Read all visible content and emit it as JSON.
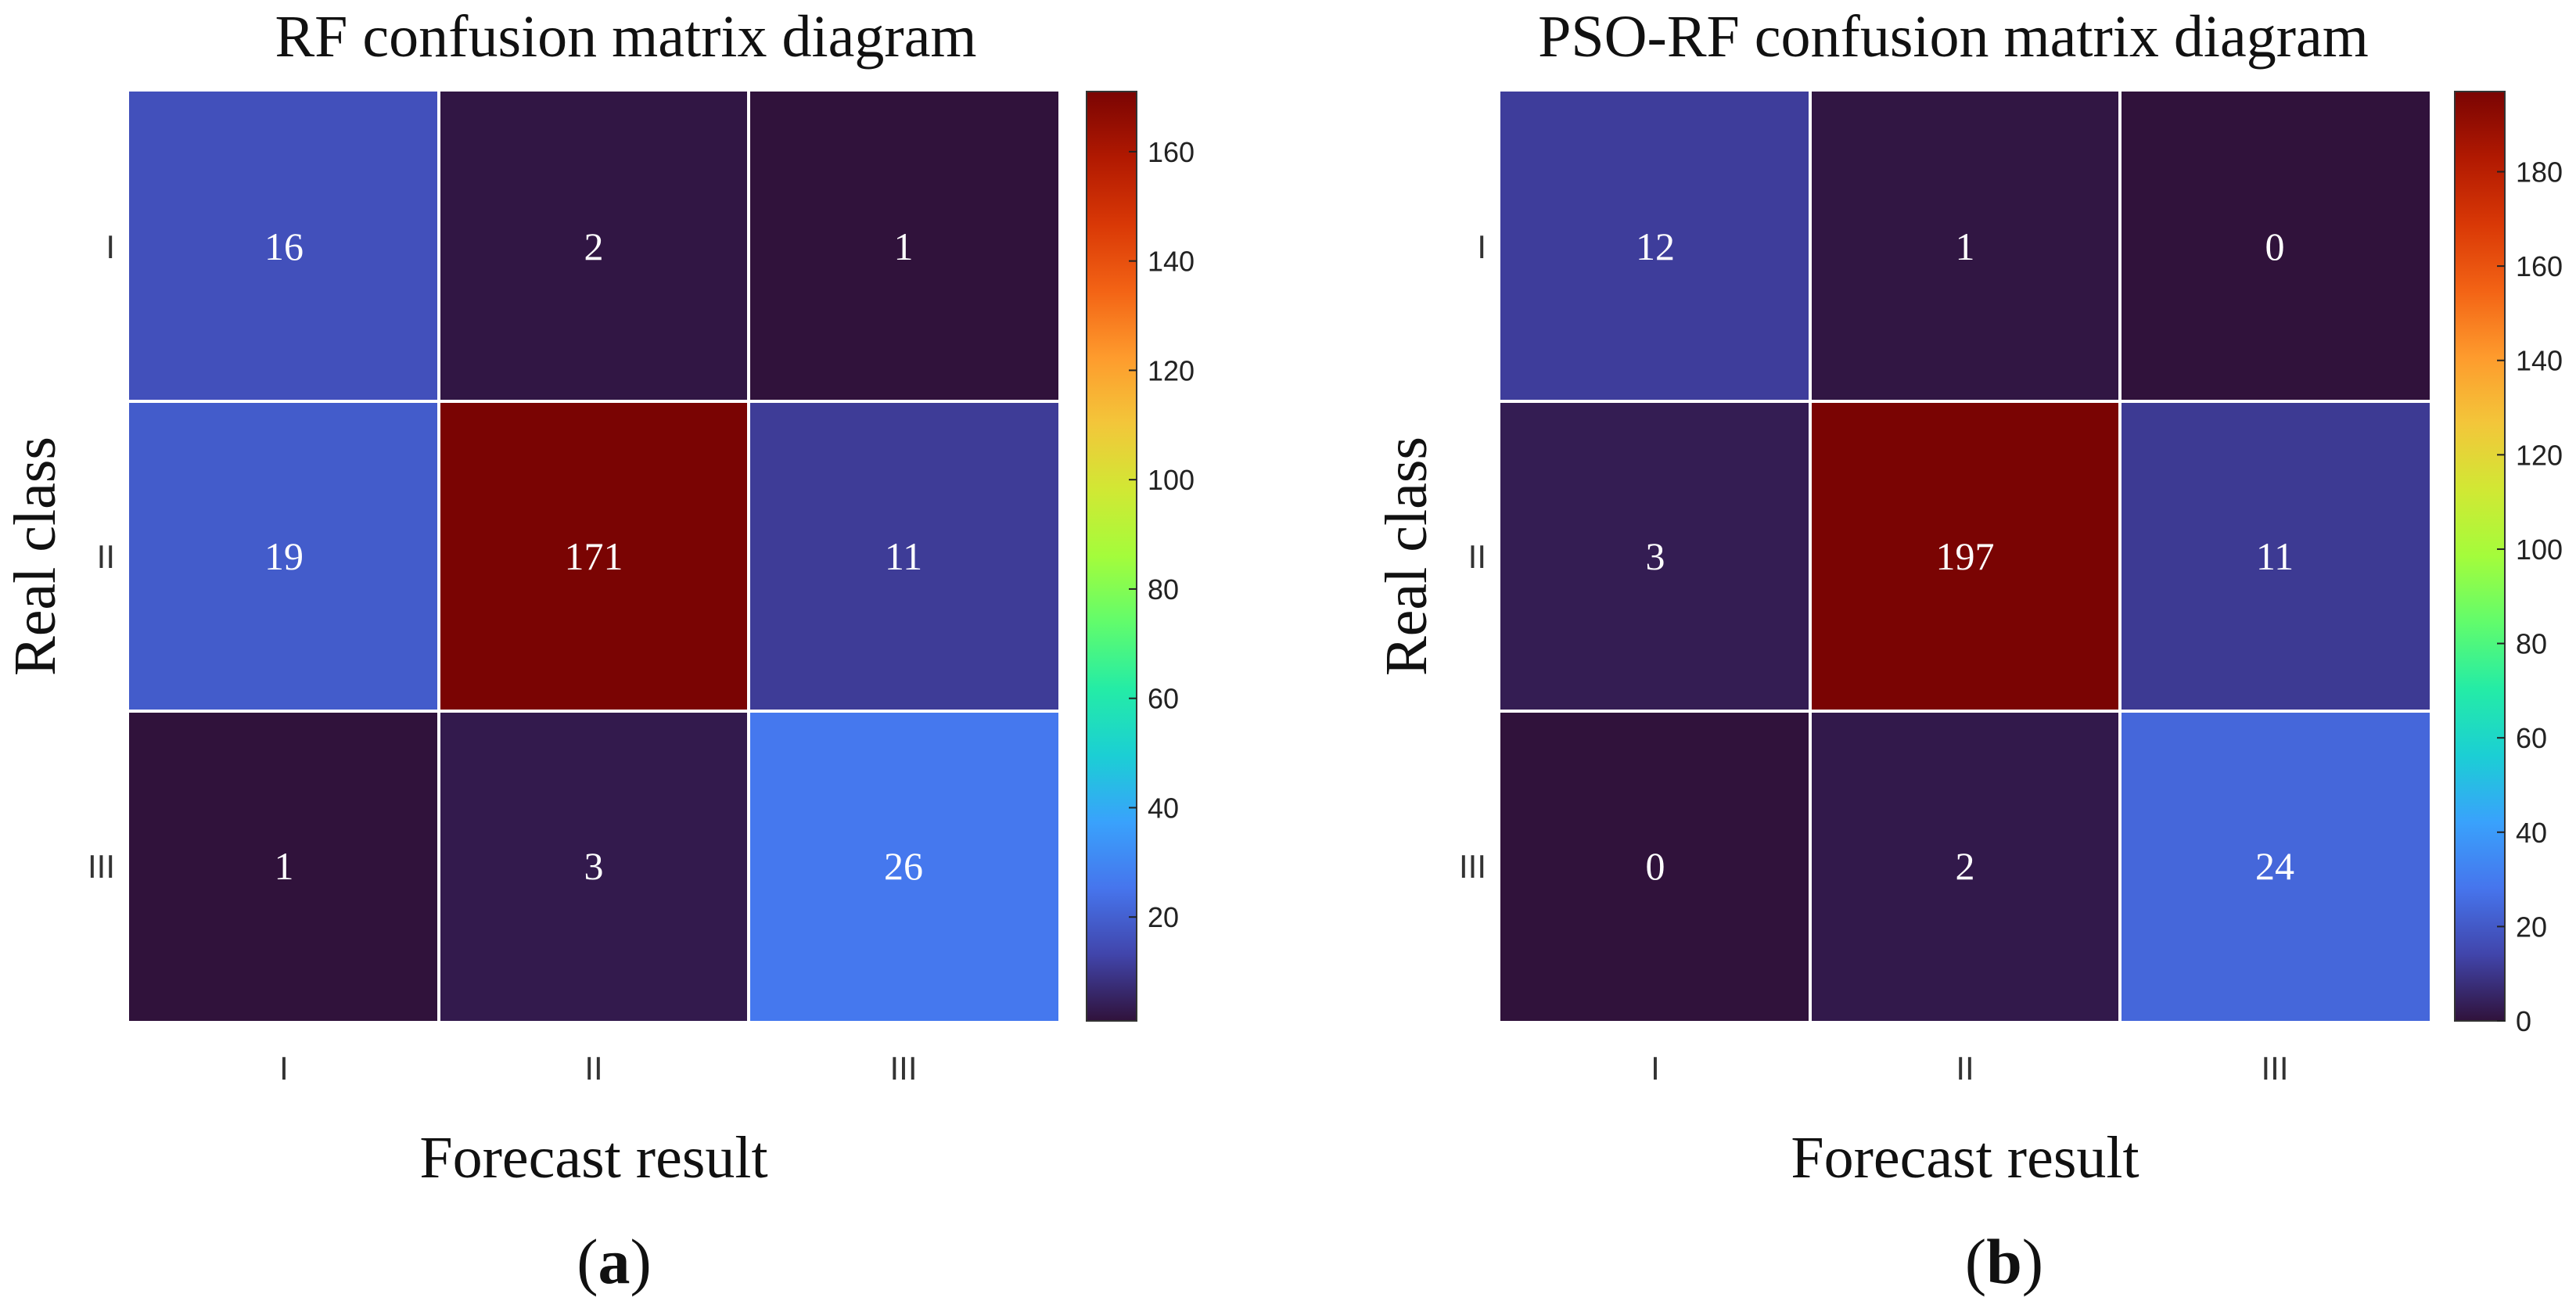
{
  "figure_labels": [
    "(a)",
    "(b)"
  ],
  "colormap": [
    "#30123b",
    "#4145ab",
    "#4675ed",
    "#39a2fc",
    "#1bcfd4",
    "#24eca6",
    "#61fc6c",
    "#a4fc3b",
    "#d1e834",
    "#f3c63a",
    "#fe9b2d",
    "#f36315",
    "#d93806",
    "#b11901",
    "#7a0403"
  ],
  "chart_data": [
    {
      "type": "heatmap",
      "title": "RF confusion matrix diagram",
      "xlabel": "Forecast result",
      "ylabel": "Real class",
      "x_categories": [
        "I",
        "II",
        "III"
      ],
      "y_categories": [
        "I",
        "II",
        "III"
      ],
      "values": [
        [
          16,
          2,
          1
        ],
        [
          19,
          171,
          11
        ],
        [
          1,
          3,
          26
        ]
      ],
      "colorbar_range": [
        1,
        171
      ],
      "colorbar_ticks": [
        20,
        40,
        60,
        80,
        100,
        120,
        140,
        160
      ]
    },
    {
      "type": "heatmap",
      "title": "PSO-RF confusion matrix diagram",
      "xlabel": "Forecast result",
      "ylabel": "Real class",
      "x_categories": [
        "I",
        "II",
        "III"
      ],
      "y_categories": [
        "I",
        "II",
        "III"
      ],
      "values": [
        [
          12,
          1,
          0
        ],
        [
          3,
          197,
          11
        ],
        [
          0,
          2,
          24
        ]
      ],
      "colorbar_range": [
        0,
        197
      ],
      "colorbar_ticks": [
        0,
        20,
        40,
        60,
        80,
        100,
        120,
        140,
        160,
        180
      ]
    }
  ]
}
